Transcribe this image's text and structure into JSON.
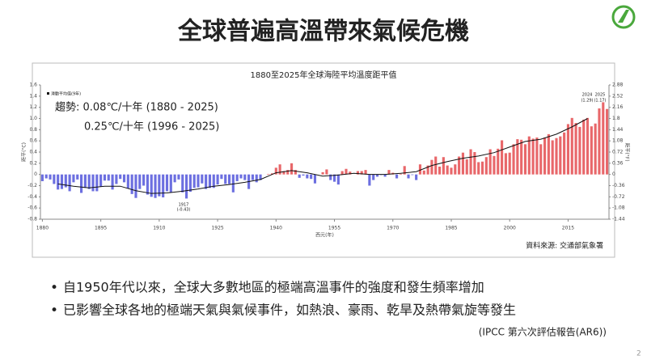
{
  "slide_title": "全球普遍高溫帶來氣候危機",
  "bullets": [
    "自1950年代以來，全球大多數地區的極端高溫事件的強度和發生頻率增加",
    "已影響全球各地的極端天氣與氣候事件，如熱浪、豪雨、乾旱及熱帶氣旋等發生"
  ],
  "reference": "(IPCC 第六次評估報告(AR6))",
  "page_number": "2",
  "chart_data": {
    "type": "bar",
    "title": "1880至2025年全球海陸平均溫度距平值",
    "xlabel": "西元(年)",
    "ylabel": "距平(°C)",
    "y2label": "距平(°F)",
    "source": "資料來源: 交通部氣象署",
    "trend": [
      "趨勢: 0.08℃/十年 (1880 - 2025)",
      "0.25℃/十年 (1996 - 2025)"
    ],
    "annotations": [
      "1917",
      "(-0.43)",
      "2024",
      "2025",
      "(1.29)",
      "(1.17)"
    ],
    "x_start": 1880,
    "values": [
      -0.12,
      -0.07,
      -0.09,
      -0.17,
      -0.27,
      -0.26,
      -0.23,
      -0.3,
      -0.14,
      -0.09,
      -0.33,
      -0.24,
      -0.26,
      -0.3,
      -0.3,
      -0.22,
      -0.11,
      -0.11,
      -0.27,
      -0.17,
      -0.08,
      -0.14,
      -0.25,
      -0.35,
      -0.42,
      -0.26,
      -0.2,
      -0.36,
      -0.4,
      -0.42,
      -0.39,
      -0.41,
      -0.3,
      -0.32,
      -0.14,
      -0.09,
      -0.32,
      -0.43,
      -0.31,
      -0.24,
      -0.23,
      -0.16,
      -0.26,
      -0.24,
      -0.24,
      -0.18,
      -0.08,
      -0.17,
      -0.17,
      -0.32,
      -0.12,
      -0.07,
      -0.1,
      -0.26,
      -0.1,
      -0.14,
      -0.1,
      0.0,
      0.01,
      0.02,
      0.12,
      0.18,
      0.06,
      0.08,
      0.2,
      0.08,
      -0.06,
      -0.02,
      -0.07,
      -0.08,
      -0.16,
      0.0,
      0.04,
      0.09,
      -0.1,
      -0.13,
      -0.18,
      0.06,
      0.1,
      0.05,
      0.0,
      0.06,
      0.06,
      0.08,
      -0.2,
      -0.1,
      -0.04,
      -0.01,
      -0.04,
      0.08,
      0.03,
      -0.07,
      0.01,
      0.15,
      -0.07,
      -0.01,
      -0.1,
      0.18,
      0.07,
      0.16,
      0.26,
      0.32,
      0.14,
      0.31,
      0.16,
      0.12,
      0.18,
      0.32,
      0.39,
      0.27,
      0.45,
      0.4,
      0.22,
      0.23,
      0.31,
      0.45,
      0.33,
      0.46,
      0.61,
      0.38,
      0.39,
      0.54,
      0.63,
      0.62,
      0.54,
      0.68,
      0.64,
      0.66,
      0.54,
      0.66,
      0.72,
      0.61,
      0.65,
      0.68,
      0.75,
      0.9,
      1.01,
      0.92,
      0.85,
      0.98,
      1.01,
      0.86,
      0.91,
      1.18,
      1.29,
      1.17
    ],
    "bar_colors": {
      "positive": "#e8676a",
      "negative": "#6c6fe0"
    },
    "moving_average": {
      "name": "滑動平均值(9年)",
      "color": "#111111",
      "x": [
        1884,
        1888,
        1892,
        1896,
        1900,
        1904,
        1908,
        1912,
        1916,
        1920,
        1924,
        1928,
        1932,
        1936,
        1940,
        1944,
        1948,
        1952,
        1956,
        1960,
        1964,
        1968,
        1972,
        1976,
        1980,
        1984,
        1988,
        1992,
        1996,
        2000,
        2004,
        2008,
        2012,
        2016,
        2020
      ],
      "values": [
        -0.17,
        -0.21,
        -0.24,
        -0.21,
        -0.21,
        -0.29,
        -0.34,
        -0.33,
        -0.3,
        -0.26,
        -0.21,
        -0.18,
        -0.14,
        -0.09,
        0.03,
        0.07,
        0.03,
        -0.03,
        -0.01,
        0.02,
        0.0,
        0.0,
        0.02,
        0.05,
        0.16,
        0.23,
        0.29,
        0.33,
        0.39,
        0.49,
        0.59,
        0.63,
        0.72,
        0.85,
        1.0
      ]
    },
    "xlim": [
      1879.5,
      2025.5
    ],
    "xticks": [
      1880,
      1895,
      1910,
      1925,
      1940,
      1955,
      1970,
      1985,
      2000,
      2015
    ],
    "ylim": [
      -0.8,
      1.6
    ],
    "yticks": [
      1.6,
      1.4,
      1.2,
      {
        "value": 1,
        "label": "1.0"
      },
      0.8,
      0.6,
      0.4,
      0.2,
      0,
      -0.2,
      -0.4,
      -0.6,
      -0.8
    ],
    "y2lim": [
      -1.44,
      2.88
    ],
    "y2ticks": [
      2.88,
      2.52,
      2.16,
      1.8,
      1.44,
      1.08,
      0.72,
      0.36,
      0,
      -0.36,
      -0.72,
      -1.08,
      -1.44
    ],
    "grid": false
  }
}
